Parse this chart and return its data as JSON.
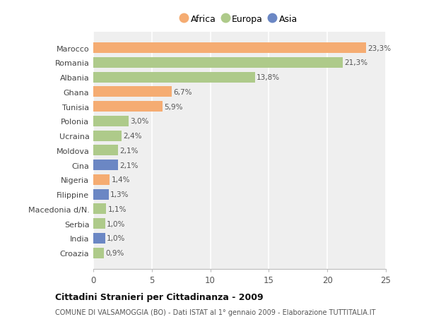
{
  "categories": [
    "Marocco",
    "Romania",
    "Albania",
    "Ghana",
    "Tunisia",
    "Polonia",
    "Ucraina",
    "Moldova",
    "Cina",
    "Nigeria",
    "Filippine",
    "Macedonia d/N.",
    "Serbia",
    "India",
    "Croazia"
  ],
  "values": [
    23.3,
    21.3,
    13.8,
    6.7,
    5.9,
    3.0,
    2.4,
    2.1,
    2.1,
    1.4,
    1.3,
    1.1,
    1.0,
    1.0,
    0.9
  ],
  "labels": [
    "23,3%",
    "21,3%",
    "13,8%",
    "6,7%",
    "5,9%",
    "3,0%",
    "2,4%",
    "2,1%",
    "2,1%",
    "1,4%",
    "1,3%",
    "1,1%",
    "1,0%",
    "1,0%",
    "0,9%"
  ],
  "continent": [
    "Africa",
    "Europa",
    "Europa",
    "Africa",
    "Africa",
    "Europa",
    "Europa",
    "Europa",
    "Asia",
    "Africa",
    "Asia",
    "Europa",
    "Europa",
    "Asia",
    "Europa"
  ],
  "colors": {
    "Africa": "#F5AC72",
    "Europa": "#AECA8A",
    "Asia": "#6B87C4"
  },
  "legend": [
    "Africa",
    "Europa",
    "Asia"
  ],
  "legend_colors": [
    "#F5AC72",
    "#AECA8A",
    "#6B87C4"
  ],
  "title": "Cittadini Stranieri per Cittadinanza - 2009",
  "subtitle": "COMUNE DI VALSAMOGGIA (BO) - Dati ISTAT al 1° gennaio 2009 - Elaborazione TUTTITALIA.IT",
  "xlim": [
    0,
    25
  ],
  "xticks": [
    0,
    5,
    10,
    15,
    20,
    25
  ],
  "background_color": "#ffffff",
  "plot_bg_color": "#efefef"
}
